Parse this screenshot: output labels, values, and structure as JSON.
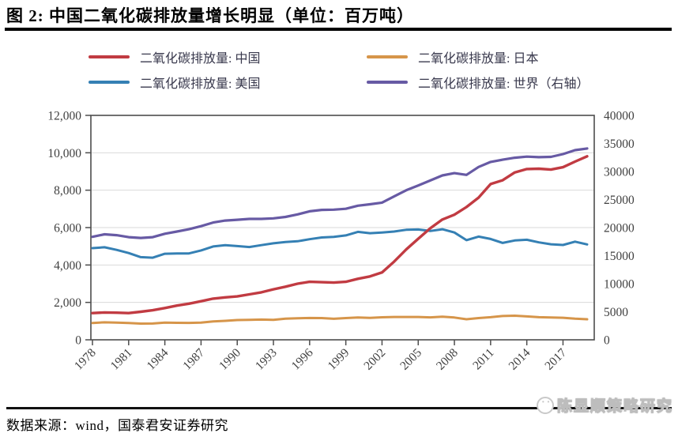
{
  "title": "图 2:  中国二氧化碳排放量增长明显（单位：百万吨）",
  "source": "数据来源：wind，国泰君安证券研究",
  "watermark": "陈显顺策略研究",
  "chart_data": {
    "type": "line",
    "title": "中国二氧化碳排放量增长明显（单位：百万吨）",
    "x": [
      1978,
      1979,
      1980,
      1981,
      1982,
      1983,
      1984,
      1985,
      1986,
      1987,
      1988,
      1989,
      1990,
      1991,
      1992,
      1993,
      1994,
      1995,
      1996,
      1997,
      1998,
      1999,
      2000,
      2001,
      2002,
      2003,
      2004,
      2005,
      2006,
      2007,
      2008,
      2009,
      2010,
      2011,
      2012,
      2013,
      2014,
      2015,
      2016,
      2017,
      2018,
      2019
    ],
    "x_tick_labels": [
      "1978",
      "1981",
      "1984",
      "1987",
      "1990",
      "1993",
      "1996",
      "1999",
      "2002",
      "2005",
      "2008",
      "2011",
      "2014",
      "2017"
    ],
    "x_tick_values": [
      1978,
      1981,
      1984,
      1987,
      1990,
      1993,
      1996,
      1999,
      2002,
      2005,
      2008,
      2011,
      2014,
      2017
    ],
    "left_axis": {
      "min": 0,
      "max": 12000,
      "tick_labels": [
        "0",
        "2,000",
        "4,000",
        "6,000",
        "8,000",
        "10,000",
        "12,000"
      ],
      "tick_values": [
        0,
        2000,
        4000,
        6000,
        8000,
        10000,
        12000
      ]
    },
    "right_axis": {
      "min": 0,
      "max": 40000,
      "tick_labels": [
        "0",
        "5000",
        "10000",
        "15000",
        "20000",
        "25000",
        "30000",
        "35000",
        "40000"
      ],
      "tick_values": [
        0,
        5000,
        10000,
        15000,
        20000,
        25000,
        30000,
        35000,
        40000
      ]
    },
    "grid": true,
    "legend_position": "top",
    "series": [
      {
        "name": "二氧化碳排放量: 中国",
        "slug": "china",
        "color": "#c13b42",
        "axis": "left",
        "values": [
          1430,
          1460,
          1450,
          1430,
          1500,
          1580,
          1700,
          1830,
          1930,
          2060,
          2200,
          2270,
          2320,
          2430,
          2540,
          2700,
          2840,
          3000,
          3100,
          3080,
          3060,
          3100,
          3260,
          3390,
          3600,
          4180,
          4830,
          5400,
          5960,
          6430,
          6690,
          7100,
          7600,
          8330,
          8530,
          8950,
          9130,
          9150,
          9100,
          9230,
          9530,
          9810
        ]
      },
      {
        "name": "二氧化碳排放量: 日本",
        "slug": "japan",
        "color": "#d6954a",
        "axis": "left",
        "values": [
          900,
          935,
          920,
          900,
          865,
          870,
          920,
          910,
          905,
          920,
          985,
          1015,
          1055,
          1065,
          1080,
          1070,
          1130,
          1150,
          1165,
          1160,
          1125,
          1160,
          1190,
          1175,
          1205,
          1220,
          1220,
          1220,
          1200,
          1240,
          1190,
          1100,
          1160,
          1210,
          1270,
          1290,
          1250,
          1210,
          1190,
          1180,
          1130,
          1100
        ]
      },
      {
        "name": "二氧化碳排放量: 美国",
        "slug": "usa",
        "color": "#3580b4",
        "axis": "left",
        "values": [
          4900,
          4950,
          4810,
          4640,
          4420,
          4390,
          4600,
          4620,
          4620,
          4780,
          4990,
          5060,
          5010,
          4960,
          5060,
          5160,
          5230,
          5270,
          5380,
          5470,
          5500,
          5580,
          5770,
          5700,
          5740,
          5790,
          5880,
          5900,
          5820,
          5910,
          5740,
          5330,
          5520,
          5390,
          5180,
          5310,
          5350,
          5210,
          5110,
          5070,
          5250,
          5100
        ]
      },
      {
        "name": "二氧化碳排放量: 世界（右轴）",
        "slug": "world",
        "color": "#675aa4",
        "axis": "right",
        "values": [
          18350,
          18800,
          18650,
          18300,
          18150,
          18300,
          18900,
          19300,
          19700,
          20250,
          20900,
          21250,
          21400,
          21550,
          21550,
          21650,
          21900,
          22350,
          22900,
          23150,
          23200,
          23350,
          23900,
          24150,
          24450,
          25550,
          26650,
          27500,
          28400,
          29300,
          29700,
          29400,
          30800,
          31700,
          32100,
          32450,
          32650,
          32550,
          32600,
          33100,
          33800,
          34100
        ]
      }
    ]
  }
}
